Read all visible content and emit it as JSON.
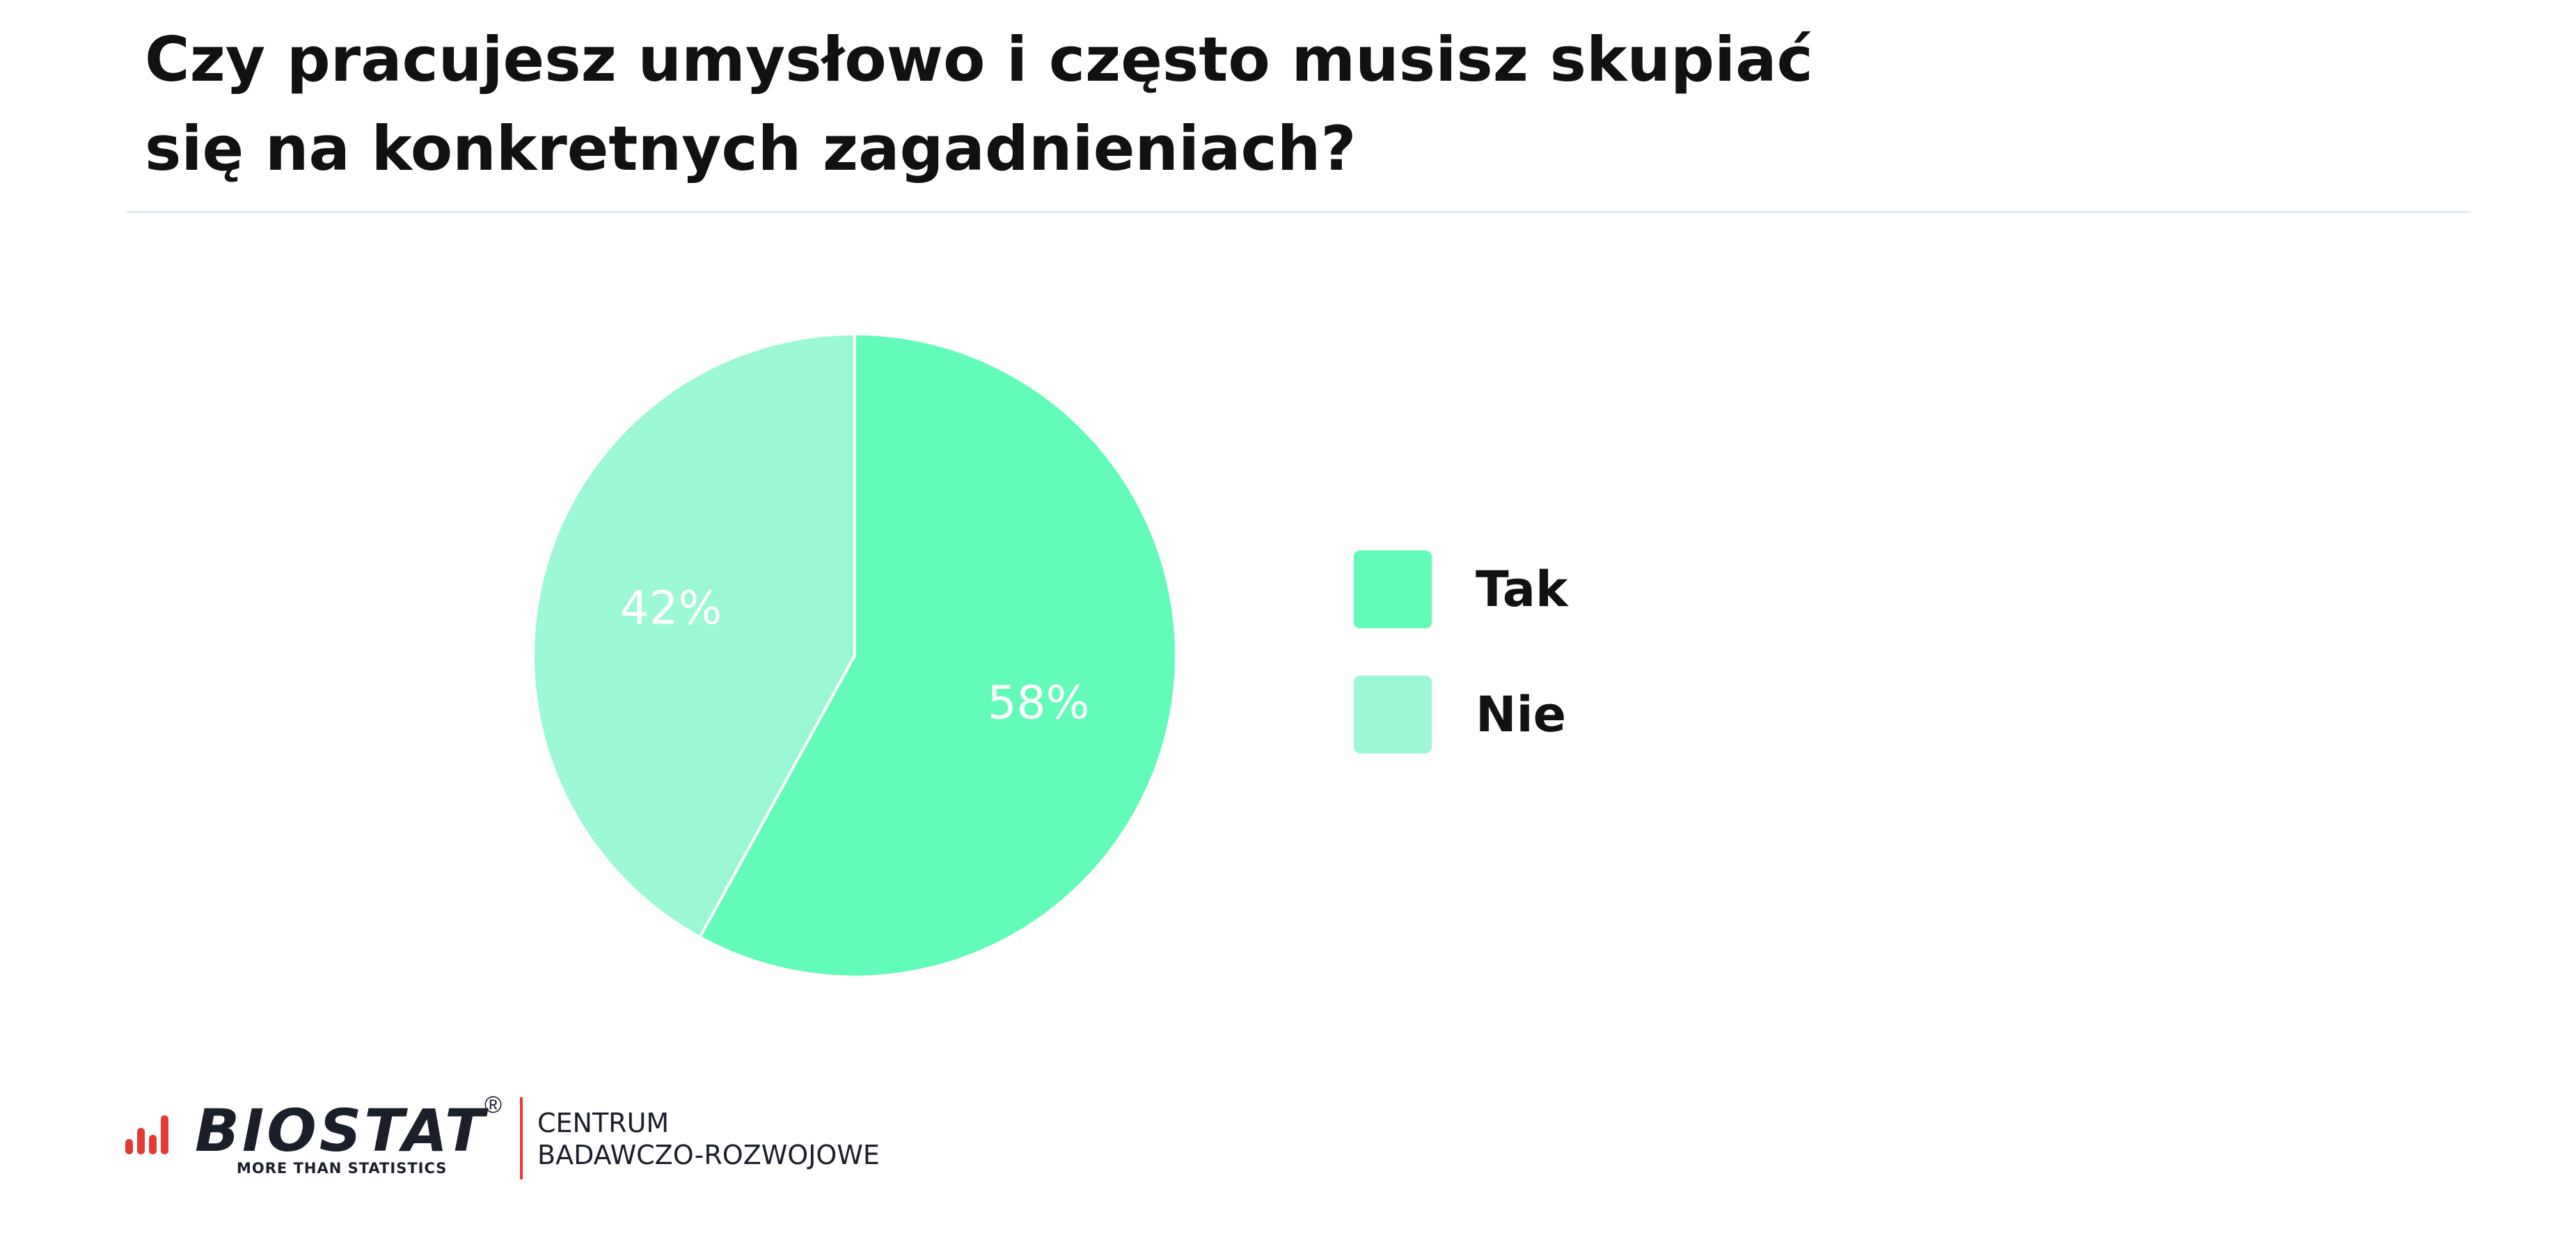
{
  "title": {
    "line1": "Czy pracujesz umysłowo i często musisz skupiać",
    "line2": "się na konkretnych zagadnieniach?"
  },
  "chart_data": {
    "type": "pie",
    "title": "Czy pracujesz umysłowo i często musisz skupiać się na konkretnych zagadnieniach?",
    "slices": [
      {
        "name": "Tak",
        "value": 58,
        "label": "58%",
        "color": "#62fbb8"
      },
      {
        "name": "Nie",
        "value": 42,
        "label": "42%",
        "color": "#9cf8d4"
      }
    ],
    "legend_placement": "right"
  },
  "colors": {
    "title_text": "#111111",
    "divider": "#e3ecf8",
    "slice_separator": "#ffffff",
    "data_label": "#ffffff",
    "brand_red": "#e53935"
  },
  "logo": {
    "brand": "BIOSTAT",
    "registered": "®",
    "tagline": "MORE THAN STATISTICS",
    "org_line1": "CENTRUM",
    "org_line2": "BADAWCZO-ROZWOJOWE"
  }
}
